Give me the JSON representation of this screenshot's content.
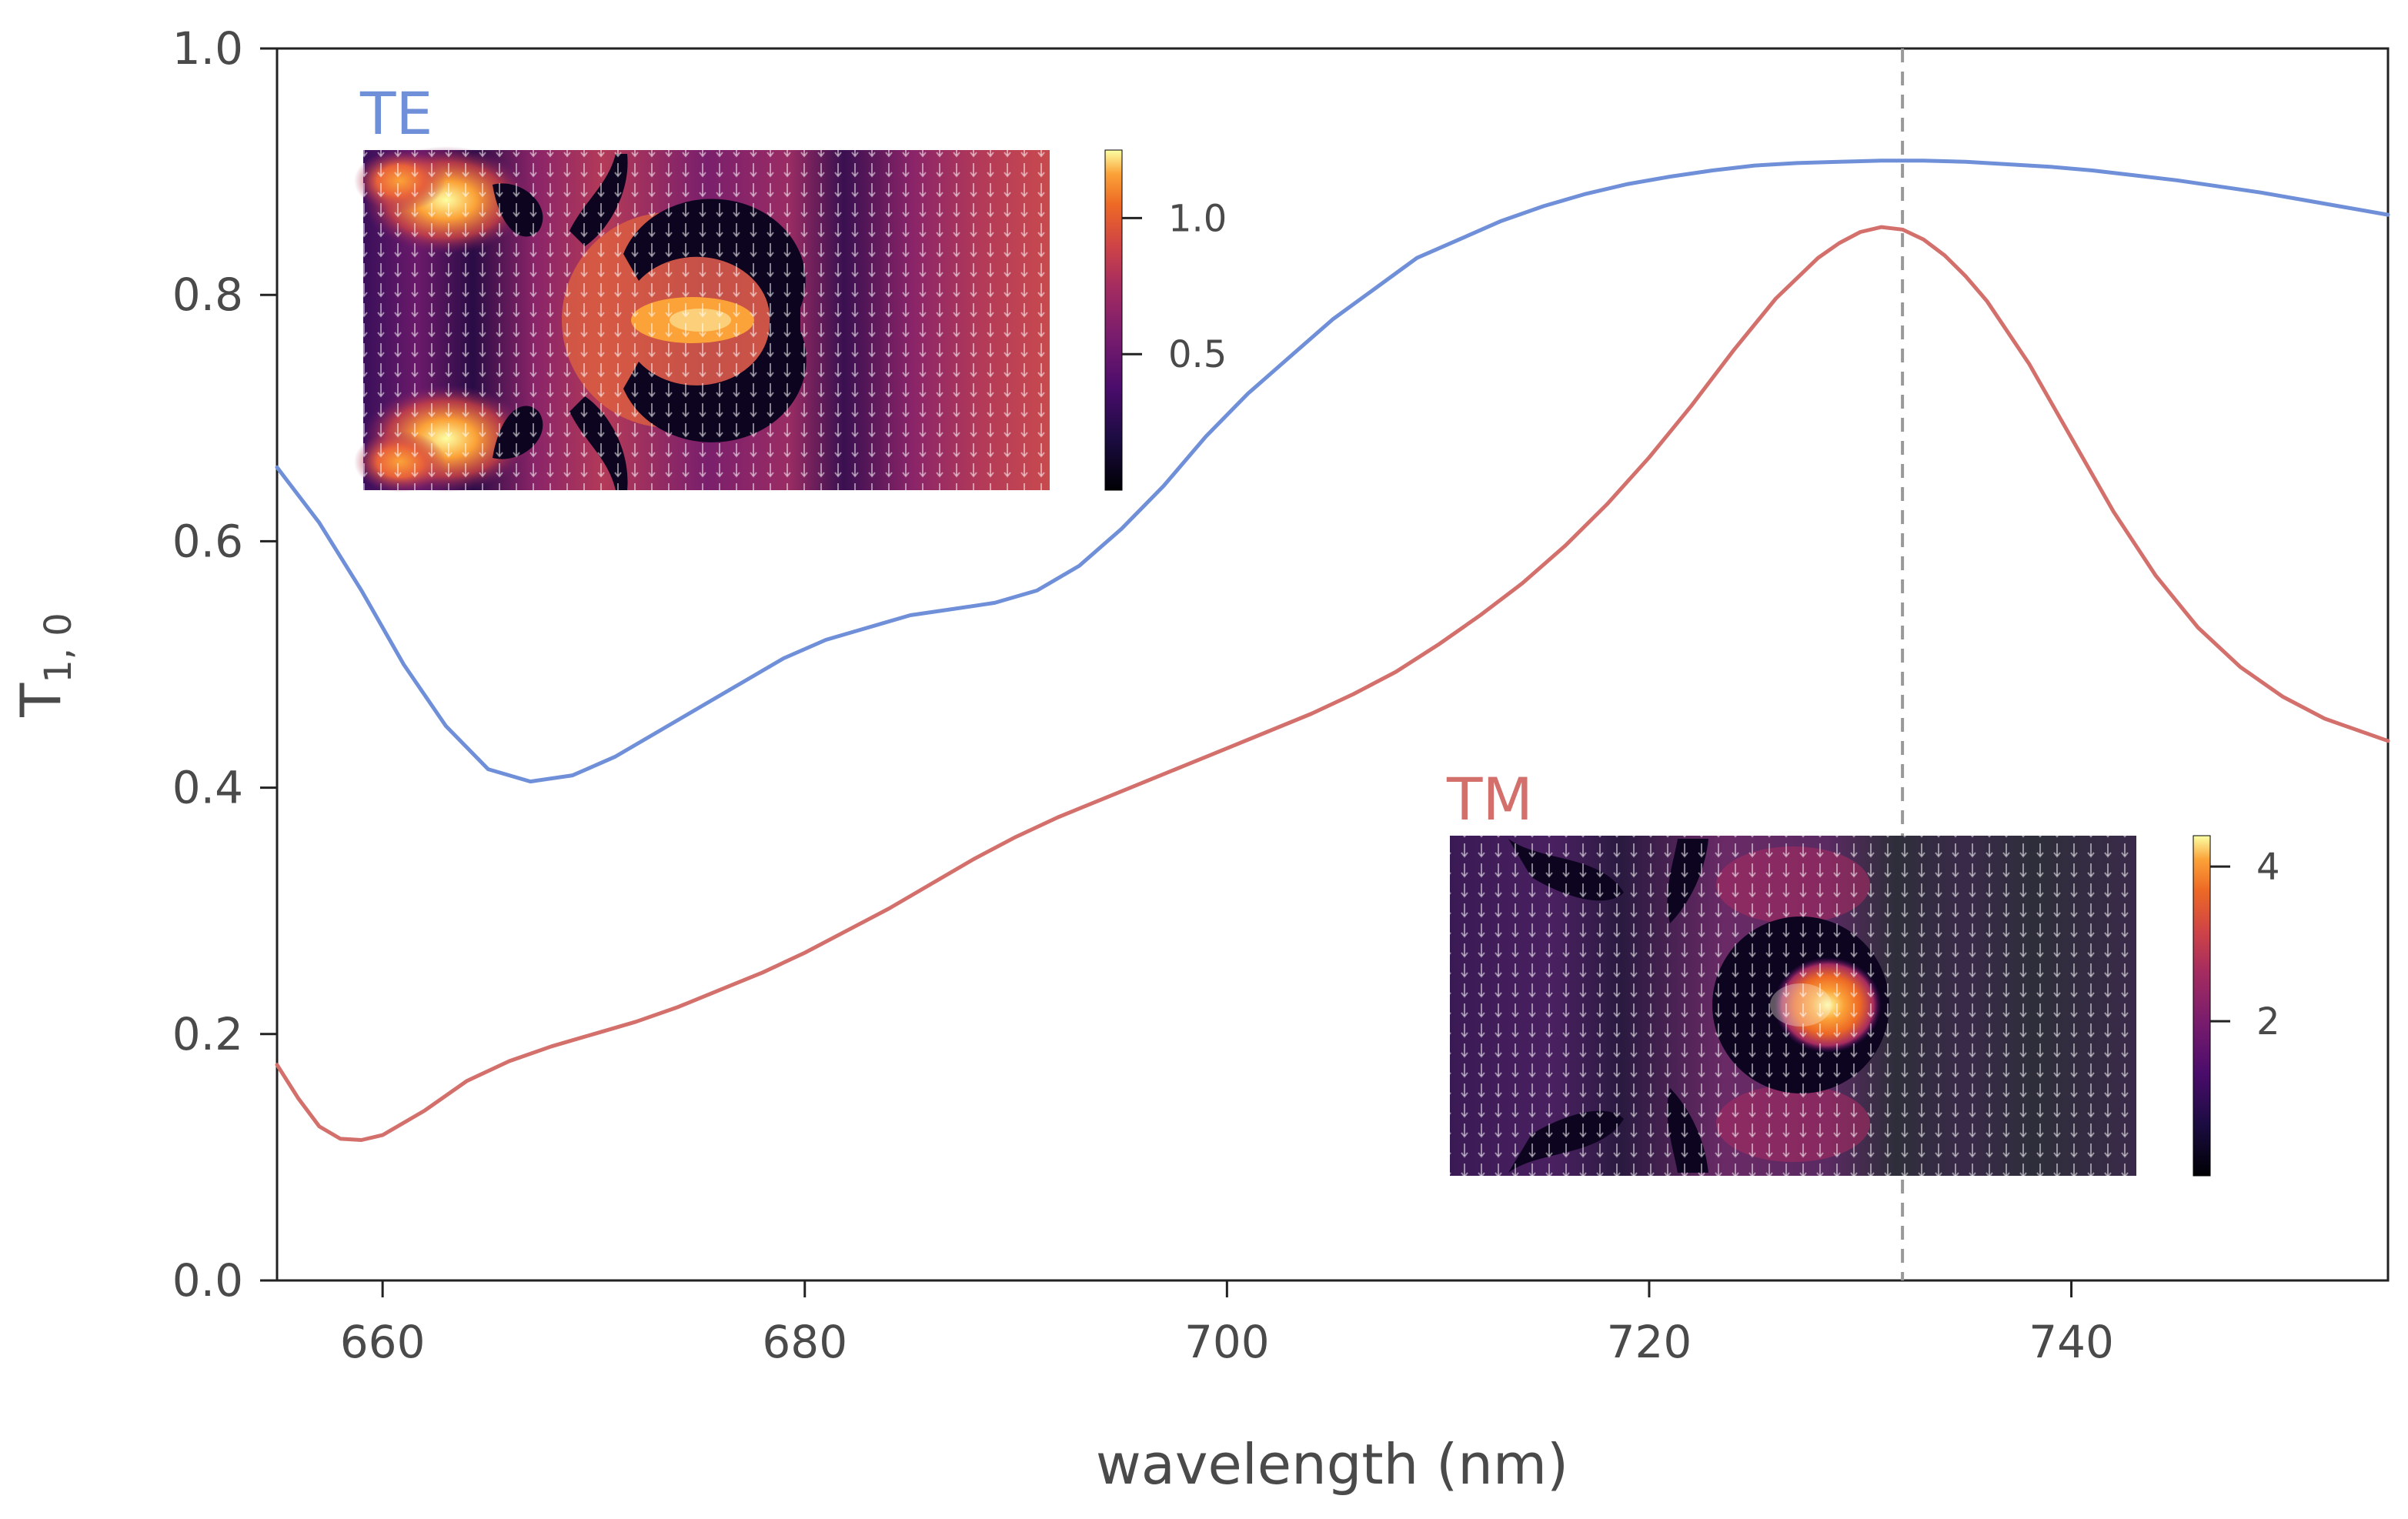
{
  "chart_data": {
    "type": "line",
    "title": "",
    "xlabel": "wavelength (nm)",
    "ylabel": "T",
    "ylabel_subscript": "1, 0",
    "xlim": [
      655,
      755
    ],
    "ylim": [
      0.0,
      1.0
    ],
    "x_ticks": [
      660,
      680,
      700,
      720,
      740
    ],
    "x_tick_labels": [
      "660",
      "680",
      "700",
      "720",
      "740"
    ],
    "y_ticks": [
      0.0,
      0.2,
      0.4,
      0.6,
      0.8,
      1.0
    ],
    "y_tick_labels": [
      "0.0",
      "0.2",
      "0.4",
      "0.6",
      "0.8",
      "1.0"
    ],
    "grid": false,
    "reference_line": {
      "x": 732,
      "style": "dashed",
      "color": "#999999"
    },
    "series": [
      {
        "name": "TE",
        "color": "#6f8fd8",
        "x": [
          655,
          657,
          659,
          661,
          663,
          665,
          667,
          669,
          671,
          673,
          675,
          677,
          679,
          681,
          683,
          685,
          687,
          689,
          691,
          693,
          695,
          697,
          699,
          701,
          703,
          705,
          707,
          709,
          711,
          713,
          715,
          717,
          719,
          721,
          723,
          725,
          727,
          729,
          731,
          733,
          735,
          737,
          739,
          741,
          743,
          745,
          747,
          749,
          751,
          753,
          755
        ],
        "values": [
          0.66,
          0.615,
          0.56,
          0.5,
          0.45,
          0.415,
          0.405,
          0.41,
          0.425,
          0.445,
          0.465,
          0.485,
          0.505,
          0.52,
          0.53,
          0.54,
          0.545,
          0.55,
          0.56,
          0.58,
          0.61,
          0.645,
          0.685,
          0.72,
          0.75,
          0.78,
          0.805,
          0.83,
          0.845,
          0.86,
          0.872,
          0.882,
          0.89,
          0.896,
          0.901,
          0.905,
          0.907,
          0.908,
          0.909,
          0.909,
          0.908,
          0.906,
          0.904,
          0.901,
          0.897,
          0.893,
          0.888,
          0.883,
          0.877,
          0.871,
          0.865
        ]
      },
      {
        "name": "TM",
        "color": "#d4706c",
        "x": [
          655,
          656,
          657,
          658,
          659,
          660,
          662,
          664,
          666,
          668,
          670,
          672,
          674,
          676,
          678,
          680,
          682,
          684,
          686,
          688,
          690,
          692,
          694,
          696,
          698,
          700,
          702,
          704,
          706,
          708,
          710,
          712,
          714,
          716,
          718,
          720,
          722,
          724,
          726,
          728,
          729,
          730,
          731,
          732,
          733,
          734,
          735,
          736,
          738,
          740,
          742,
          744,
          746,
          748,
          750,
          752,
          755
        ],
        "values": [
          0.175,
          0.148,
          0.125,
          0.115,
          0.114,
          0.118,
          0.138,
          0.162,
          0.178,
          0.19,
          0.2,
          0.21,
          0.222,
          0.236,
          0.25,
          0.266,
          0.284,
          0.302,
          0.322,
          0.342,
          0.36,
          0.376,
          0.39,
          0.404,
          0.418,
          0.432,
          0.446,
          0.46,
          0.476,
          0.494,
          0.516,
          0.54,
          0.566,
          0.596,
          0.63,
          0.668,
          0.71,
          0.755,
          0.797,
          0.83,
          0.842,
          0.851,
          0.855,
          0.853,
          0.845,
          0.832,
          0.815,
          0.795,
          0.744,
          0.684,
          0.624,
          0.572,
          0.53,
          0.498,
          0.474,
          0.456,
          0.438
        ]
      }
    ],
    "insets": [
      {
        "label": "TE",
        "colorbar_ticks": [
          0.5,
          1.0
        ],
        "colorbar_tick_labels": [
          "0.5",
          "1.0"
        ],
        "colorbar_range": [
          0.0,
          1.25
        ]
      },
      {
        "label": "TM",
        "colorbar_ticks": [
          2,
          4
        ],
        "colorbar_tick_labels": [
          "2",
          "4"
        ],
        "colorbar_range": [
          0.0,
          4.4
        ]
      }
    ]
  }
}
